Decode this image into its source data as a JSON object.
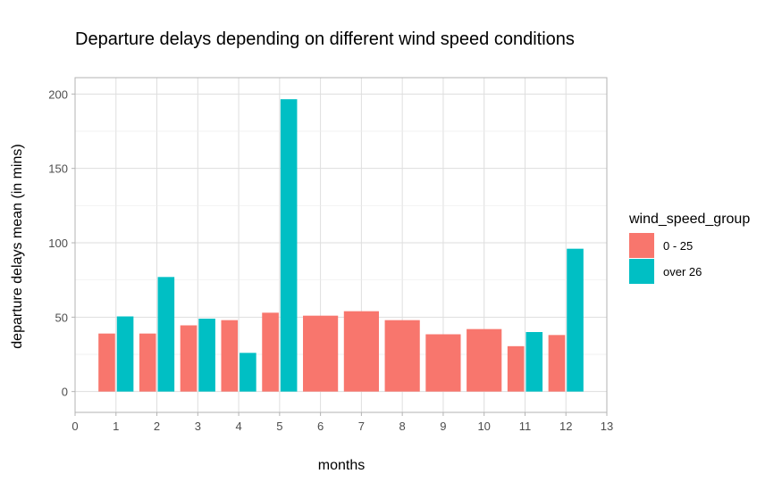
{
  "chart_data": {
    "type": "bar",
    "title": "Departure delays depending on different wind speed conditions",
    "xlabel": "months",
    "ylabel": "departure delays mean (in mins)",
    "xlim": [
      0,
      13
    ],
    "ylim": [
      0,
      200
    ],
    "x_ticks": [
      "0",
      "1",
      "2",
      "3",
      "4",
      "5",
      "6",
      "7",
      "8",
      "9",
      "10",
      "11",
      "12",
      "13"
    ],
    "y_ticks": [
      "0",
      "50",
      "100",
      "150",
      "200"
    ],
    "grid": true,
    "legend": {
      "title": "wind_speed_group",
      "placement": "right",
      "entries": [
        "0 - 25",
        "over 26"
      ]
    },
    "series": [
      {
        "name": "0 - 25",
        "color": "#F8766D",
        "points": [
          {
            "x": 1,
            "y": 39
          },
          {
            "x": 2,
            "y": 39
          },
          {
            "x": 3,
            "y": 44.5
          },
          {
            "x": 4,
            "y": 48
          },
          {
            "x": 5,
            "y": 53
          },
          {
            "x": 6,
            "y": 51
          },
          {
            "x": 7,
            "y": 54
          },
          {
            "x": 8,
            "y": 48
          },
          {
            "x": 9,
            "y": 38.5
          },
          {
            "x": 10,
            "y": 42
          },
          {
            "x": 11,
            "y": 30.5
          },
          {
            "x": 12,
            "y": 38
          }
        ]
      },
      {
        "name": "over 26",
        "color": "#00BFC4",
        "points": [
          {
            "x": 1,
            "y": 50.5
          },
          {
            "x": 2,
            "y": 77
          },
          {
            "x": 3,
            "y": 49
          },
          {
            "x": 4,
            "y": 26
          },
          {
            "x": 5,
            "y": 196.5
          },
          {
            "x": 11,
            "y": 40
          },
          {
            "x": 12,
            "y": 96
          }
        ]
      }
    ]
  }
}
